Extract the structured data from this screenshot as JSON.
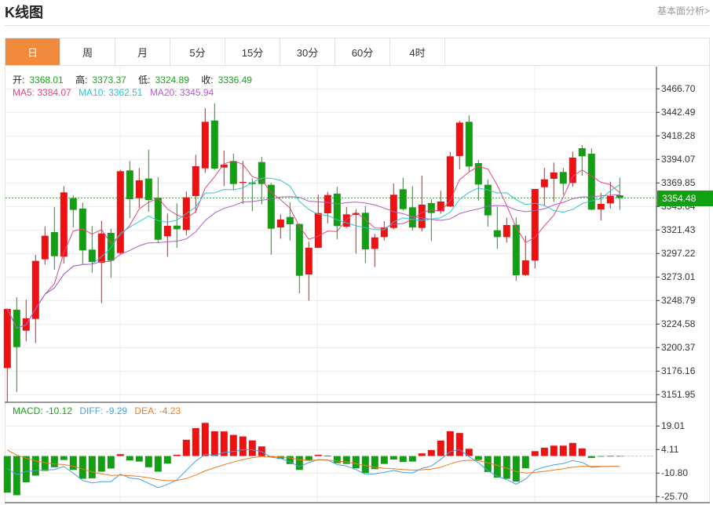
{
  "header": {
    "title": "K线图",
    "link": "基本面分析>"
  },
  "tabs": [
    {
      "label": "日",
      "active": true
    },
    {
      "label": "周"
    },
    {
      "label": "月"
    },
    {
      "label": "5分"
    },
    {
      "label": "15分"
    },
    {
      "label": "30分"
    },
    {
      "label": "60分"
    },
    {
      "label": "4时"
    }
  ],
  "legend": {
    "open_label": "开:",
    "open": "3368.01",
    "high_label": "高:",
    "high": "3373.37",
    "low_label": "低:",
    "low": "3324.89",
    "close_label": "收:",
    "close": "3336.49",
    "ma5": "MA5: 3384.07",
    "ma10": "MA10: 3362.51",
    "ma20": "MA20: 3345.94"
  },
  "macd_legend": {
    "macd": "MACD: -10.12",
    "diff": "DIFF: -9.29",
    "dea": "DEA: -4.23"
  },
  "colors": {
    "up": "#ee1111",
    "down": "#12a012",
    "ma5": "#e6457a",
    "ma10": "#2fc4cf",
    "ma20": "#b05cc8",
    "diff": "#4a9ee6",
    "dea": "#f07a20",
    "accent": "#f08a3c",
    "last_price": "#10a010"
  },
  "chart_data": {
    "type": "candlestick",
    "ohlc_order": [
      "open",
      "high",
      "low",
      "close"
    ],
    "ohlc": [
      [
        3179.35,
        3240.7,
        3143.84,
        3240.15
      ],
      [
        3239.35,
        3252.26,
        3154.6,
        3200.88
      ],
      [
        3217.82,
        3249.57,
        3207.06,
        3230.47
      ],
      [
        3229.94,
        3295.84,
        3204.91,
        3289.66
      ],
      [
        3291.27,
        3324.9,
        3285.89,
        3315.48
      ],
      [
        3319.25,
        3345.08,
        3280.51,
        3294.5
      ],
      [
        3293.96,
        3366.6,
        3286.97,
        3360.14
      ],
      [
        3354.22,
        3356.91,
        3324.09,
        3342.12
      ],
      [
        3343.46,
        3349.65,
        3285.89,
        3300.42
      ],
      [
        3301.23,
        3325.44,
        3277.55,
        3288.58
      ],
      [
        3287.77,
        3330.82,
        3246.07,
        3317.9
      ],
      [
        3318.44,
        3322.75,
        3272.17,
        3289.92
      ],
      [
        3297.73,
        3383.28,
        3295.84,
        3381.93
      ],
      [
        3382.74,
        3392.43,
        3333.51,
        3353.15
      ],
      [
        3354.22,
        3385.16,
        3344.27,
        3372.52
      ],
      [
        3374.4,
        3404.0,
        3340.23,
        3352.34
      ],
      [
        3354.76,
        3376.01,
        3307.95,
        3311.44
      ],
      [
        3314.94,
        3338.35,
        3293.96,
        3325.71
      ],
      [
        3325.97,
        3348.84,
        3303.11,
        3322.21
      ],
      [
        3321.4,
        3360.95,
        3316.02,
        3355.03
      ],
      [
        3356.37,
        3398.88,
        3338.89,
        3387.04
      ],
      [
        3384.89,
        3446.77,
        3380.05,
        3432.78
      ],
      [
        3434.12,
        3451.88,
        3383.28,
        3384.62
      ],
      [
        3385.7,
        3403.19,
        3366.6,
        3388.66
      ],
      [
        3392.43,
        3399.96,
        3363.1,
        3368.75
      ],
      [
        3370.1,
        3392.43,
        3348.3,
        3370.9
      ],
      [
        3370.4,
        3374.67,
        3340.77,
        3368.75
      ],
      [
        3391.35,
        3396.73,
        3347.77,
        3368.75
      ],
      [
        3367.94,
        3369.83,
        3295.84,
        3322.75
      ],
      [
        3324.09,
        3337.54,
        3312.52,
        3332.16
      ],
      [
        3334.85,
        3349.92,
        3310.64,
        3327.32
      ],
      [
        3327.59,
        3328.13,
        3256.3,
        3274.32
      ],
      [
        3275.67,
        3309.3,
        3248.76,
        3303.11
      ],
      [
        3303.11,
        3357.72,
        3302.57,
        3338.89
      ],
      [
        3338.62,
        3360.41,
        3328.13,
        3357.45
      ],
      [
        3358.8,
        3365.79,
        3311.98,
        3325.44
      ],
      [
        3324.9,
        3345.08,
        3323.55,
        3337.54
      ],
      [
        3337.0,
        3342.92,
        3297.19,
        3338.89
      ],
      [
        3339.16,
        3346.15,
        3287.23,
        3301.49
      ],
      [
        3302.03,
        3317.37,
        3283.2,
        3313.86
      ],
      [
        3314.13,
        3330.55,
        3310.64,
        3324.09
      ],
      [
        3323.55,
        3369.29,
        3322.21,
        3357.72
      ],
      [
        3363.37,
        3375.21,
        3341.31,
        3342.92
      ],
      [
        3344.8,
        3366.6,
        3320.86,
        3324.09
      ],
      [
        3323.55,
        3377.36,
        3320.06,
        3347.5
      ],
      [
        3349.11,
        3353.15,
        3310.1,
        3338.89
      ],
      [
        3340.77,
        3361.76,
        3338.08,
        3350.73
      ],
      [
        3345.61,
        3401.57,
        3345.08,
        3397.27
      ],
      [
        3397.54,
        3433.59,
        3383.82,
        3431.97
      ],
      [
        3432.78,
        3439.5,
        3381.93,
        3386.77
      ],
      [
        3390.27,
        3393.5,
        3351.8,
        3368.21
      ],
      [
        3368.01,
        3373.37,
        3324.89,
        3336.49
      ],
      [
        3321.13,
        3345.61,
        3302.03,
        3314.13
      ],
      [
        3314.13,
        3334.04,
        3308.49,
        3326.51
      ],
      [
        3326.78,
        3334.31,
        3268.94,
        3274.86
      ],
      [
        3275.13,
        3315.48,
        3274.32,
        3290.19
      ],
      [
        3289.92,
        3363.64,
        3281.85,
        3363.64
      ],
      [
        3365.52,
        3385.43,
        3346.15,
        3373.59
      ],
      [
        3374.13,
        3390.81,
        3350.45,
        3380.59
      ],
      [
        3381.13,
        3385.43,
        3357.72,
        3369.02
      ],
      [
        3369.83,
        3402.11,
        3365.79,
        3395.92
      ],
      [
        3405.61,
        3408.84,
        3377.36,
        3397.27
      ],
      [
        3399.96,
        3405.34,
        3341.58,
        3342.38
      ],
      [
        3342.65,
        3359.6,
        3331.36,
        3348.3
      ],
      [
        3348.84,
        3371.17,
        3343.73,
        3356.37
      ],
      [
        3357.18,
        3375.21,
        3342.12,
        3354.48
      ]
    ],
    "selected_index": 51,
    "moving_averages": [
      5,
      10,
      20
    ],
    "y_ticks": [
      "3466.70",
      "3442.49",
      "3418.28",
      "3394.07",
      "3369.85",
      "3345.64",
      "3321.43",
      "3297.22",
      "3273.01",
      "3248.79",
      "3224.58",
      "3200.37",
      "3176.16",
      "3151.95"
    ],
    "ylim": [
      3151.95,
      3466.7
    ],
    "last_price": "3354.48",
    "grid": true,
    "macd": {
      "histogram": [
        -23.2,
        -24.8,
        -16.6,
        -12.4,
        -9.4,
        -7.1,
        -2.5,
        -8.8,
        -14.4,
        -14.1,
        -9.9,
        -7.9,
        1.2,
        -2.8,
        -3.5,
        -7.1,
        -9.9,
        -4.8,
        0.8,
        10.3,
        17.7,
        21.0,
        15.7,
        15.6,
        13.4,
        12.4,
        9.9,
        6.1,
        -0.8,
        -1.8,
        -5.1,
        -8.8,
        -3.0,
        0.8,
        0.2,
        -4.5,
        -5.0,
        -7.8,
        -10.8,
        -8.3,
        -5.0,
        -2.2,
        -3.8,
        -3.5,
        1.7,
        3.8,
        9.8,
        15.7,
        14.6,
        4.6,
        -2.5,
        -10.12,
        -13.7,
        -14.4,
        -16.2,
        -7.8,
        3.1,
        5.3,
        6.6,
        6.6,
        8.3,
        4.8,
        -1.2,
        -0.3,
        0.1,
        0.1
      ],
      "dea_at_selected": -4.23,
      "y_ticks": [
        "19.01",
        "4.11",
        "-10.80",
        "-25.70"
      ],
      "ylim": [
        -25.7,
        19.01
      ]
    }
  }
}
